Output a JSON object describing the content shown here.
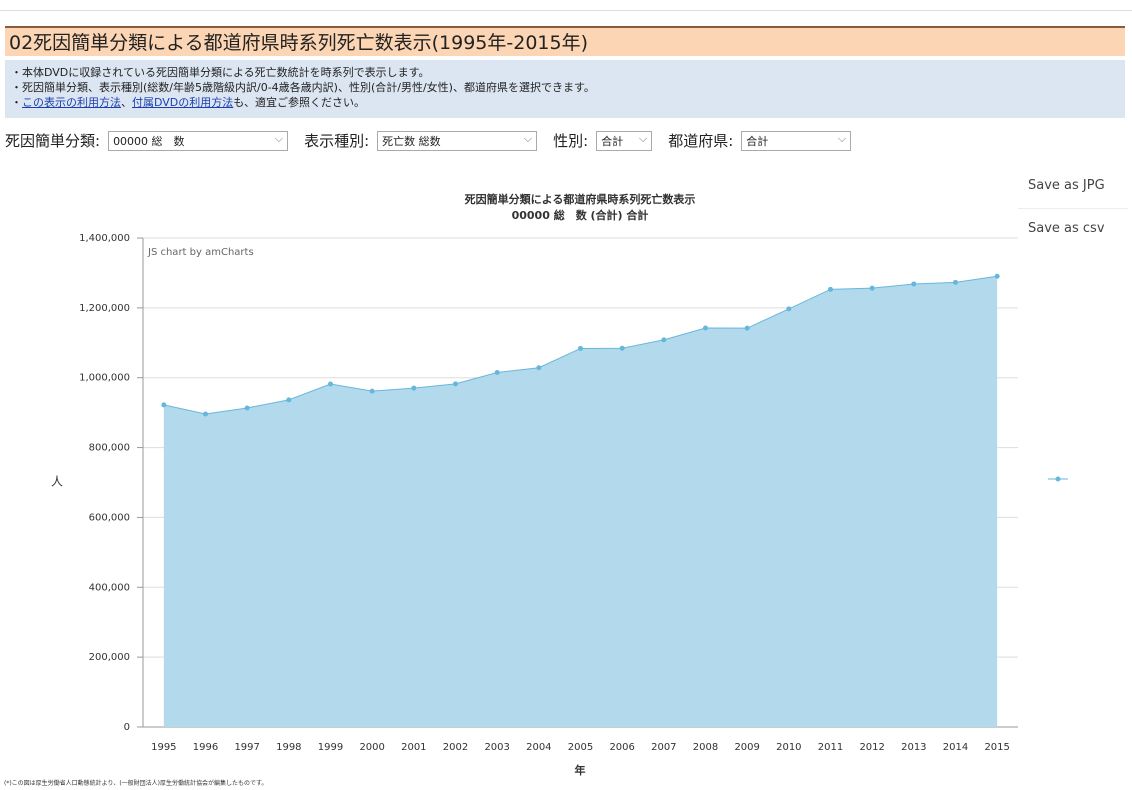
{
  "header": {
    "title": "02死因簡単分類による都道府県時系列死亡数表示(1995年-2015年)"
  },
  "description": {
    "line1": "・本体DVDに収録されている死因簡単分類による死亡数統計を時系列で表示します。",
    "line2": "・死因簡単分類、表示種別(総数/年齢5歳階級内訳/0-4歳各歳内訳)、性別(合計/男性/女性)、都道府県を選択できます。",
    "line3": {
      "bullet": "・",
      "link1": "この表示の利用方法",
      "sep": "、",
      "link2": "付属DVDの利用方法",
      "rest": "も、適宜ご参照ください。"
    }
  },
  "controls": [
    {
      "label": "死因簡単分類:",
      "value": "00000 総　数"
    },
    {
      "label": "表示種別:",
      "value": "死亡数 総数"
    },
    {
      "label": "性別:",
      "value": "合計"
    },
    {
      "label": "都道府県:",
      "value": "合計"
    }
  ],
  "buttons": [
    "Save as JPG",
    "Save as csv"
  ],
  "footnote": "(*)この図は厚生労働省人口動態統計より、(一般財団法人)厚生労働統計協会が編集したものです。",
  "chart_data": {
    "type": "area",
    "title": "死因簡単分類による都道府県時系列死亡数表示",
    "subtitle": "00000 総　数 (合計) 合計",
    "credit": "JS chart by amCharts",
    "x_label": "年",
    "y_label": "人",
    "categories": [
      "1995",
      "1996",
      "1997",
      "1998",
      "1999",
      "2000",
      "2001",
      "2002",
      "2003",
      "2004",
      "2005",
      "2006",
      "2007",
      "2008",
      "2009",
      "2010",
      "2011",
      "2012",
      "2013",
      "2014",
      "2015"
    ],
    "values": [
      922139,
      896211,
      913402,
      936484,
      982031,
      961653,
      970331,
      982379,
      1014951,
      1028602,
      1083796,
      1084450,
      1108334,
      1142407,
      1141865,
      1197012,
      1253066,
      1256359,
      1268436,
      1273004,
      1290444
    ],
    "color": "#67b7dc",
    "fill_color": "#b3d9ec",
    "ylim": [
      0,
      1400000
    ],
    "yticks": [
      0,
      {
        "value": 200000,
        "label": "200,000"
      },
      {
        "value": 400000,
        "label": "400,000"
      },
      {
        "value": 600000,
        "label": "600,000"
      },
      {
        "value": 800000,
        "label": "800,000"
      },
      {
        "value": 1000000,
        "label": "1,000,000"
      },
      {
        "value": 1200000,
        "label": "1,200,000"
      },
      {
        "value": 1400000,
        "label": "1,400,000"
      }
    ],
    "grid": true
  }
}
